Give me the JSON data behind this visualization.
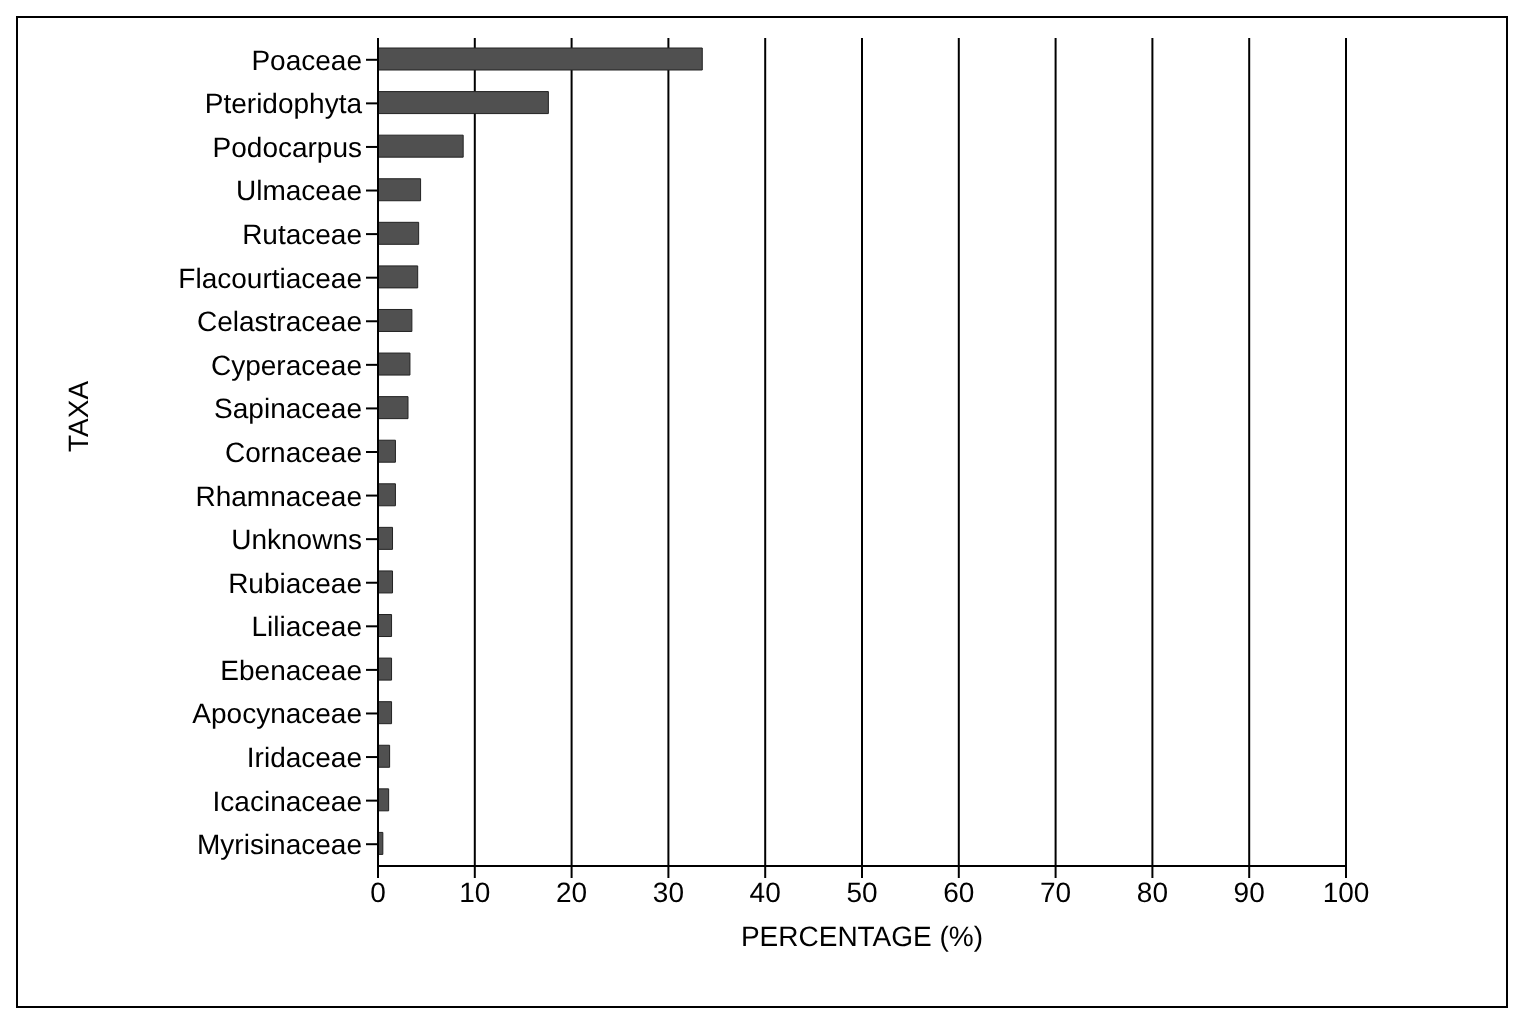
{
  "chart_data": {
    "type": "bar",
    "orientation": "horizontal",
    "xlabel": "PERCENTAGE (%)",
    "ylabel": "TAXA",
    "categories": [
      "Poaceae",
      "Pteridophyta",
      "Podocarpus",
      "Ulmaceae",
      "Rutaceae",
      "Flacourtiaceae",
      "Celastraceae",
      "Cyperaceae",
      "Sapinaceae",
      "Cornaceae",
      "Rhamnaceae",
      "Unknowns",
      "Rubiaceae",
      "Liliaceae",
      "Ebenaceae",
      "Apocynaceae",
      "Iridaceae",
      "Icacinaceae",
      "Myrisinaceae"
    ],
    "values": [
      33.5,
      17.6,
      8.8,
      4.4,
      4.2,
      4.1,
      3.5,
      3.3,
      3.1,
      1.8,
      1.8,
      1.5,
      1.5,
      1.4,
      1.4,
      1.4,
      1.2,
      1.1,
      0.5
    ],
    "color": "#505050",
    "xlim": [
      0,
      100
    ],
    "xticks": [
      0,
      10,
      20,
      30,
      40,
      50,
      60,
      70,
      80,
      90,
      100
    ],
    "grid": "x",
    "legend": false
  }
}
